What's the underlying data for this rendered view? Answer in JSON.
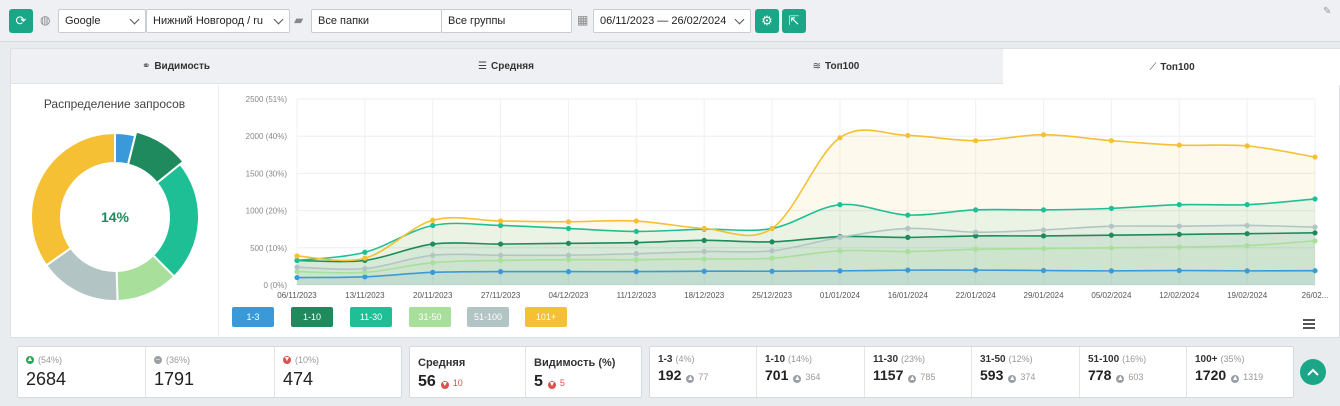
{
  "toolbar": {
    "search_engine": "Google",
    "region": "Нижний Новгород / ru",
    "folders": "Все папки",
    "groups": "Все группы",
    "date_range": "06/11/2023 — 26/02/2024"
  },
  "tabs": [
    {
      "label": "Видимость",
      "icon": "glasses-icon"
    },
    {
      "label": "Средняя",
      "icon": "lines-icon"
    },
    {
      "label": "Топ100",
      "icon": "layers-icon"
    },
    {
      "label": "Топ100",
      "icon": "chart-line-icon"
    }
  ],
  "donut": {
    "title": "Распределение запросов",
    "center_label": "14%"
  },
  "chart_data": {
    "type": "area",
    "categories": [
      "06/11/2023",
      "13/11/2023",
      "20/11/2023",
      "27/11/2023",
      "04/12/2023",
      "11/12/2023",
      "18/12/2023",
      "25/12/2023",
      "01/01/2024",
      "16/01/2024",
      "22/01/2024",
      "29/01/2024",
      "05/02/2024",
      "12/02/2024",
      "19/02/2024",
      "26/02..."
    ],
    "y_ticks": [
      "0 (0%)",
      "500 (10%)",
      "1000 (20%)",
      "1500 (30%)",
      "2000 (40%)",
      "2500 (51%)"
    ],
    "ylim": [
      0,
      2500
    ],
    "series": [
      {
        "name": "1-3",
        "color": "#3a9ad9",
        "values": [
          100,
          110,
          170,
          180,
          180,
          180,
          185,
          185,
          190,
          200,
          200,
          195,
          190,
          195,
          190,
          192
        ]
      },
      {
        "name": "1-10",
        "color": "#1e8a5e",
        "values": [
          330,
          330,
          550,
          550,
          560,
          570,
          600,
          580,
          650,
          640,
          660,
          660,
          670,
          680,
          690,
          701
        ]
      },
      {
        "name": "11-30",
        "color": "#1fbf95",
        "values": [
          330,
          440,
          800,
          800,
          760,
          720,
          750,
          760,
          1080,
          940,
          1010,
          1010,
          1030,
          1080,
          1080,
          1157
        ]
      },
      {
        "name": "31-50",
        "color": "#a8df9a",
        "values": [
          180,
          170,
          300,
          330,
          340,
          340,
          350,
          360,
          460,
          450,
          480,
          490,
          500,
          510,
          530,
          593
        ]
      },
      {
        "name": "51-100",
        "color": "#b3c4c4",
        "values": [
          240,
          220,
          400,
          400,
          400,
          420,
          450,
          460,
          640,
          760,
          710,
          740,
          790,
          790,
          800,
          778
        ]
      },
      {
        "name": "101+",
        "color": "#f5c033",
        "values": [
          390,
          360,
          870,
          860,
          850,
          860,
          760,
          760,
          1980,
          2010,
          1940,
          2020,
          1940,
          1880,
          1870,
          1720
        ]
      }
    ]
  },
  "donut_data": {
    "segments": [
      {
        "name": "1-3",
        "color": "#3a9ad9",
        "value": 192
      },
      {
        "name": "1-10",
        "color": "#1e8a5e",
        "value": 509
      },
      {
        "name": "11-30",
        "color": "#1fbf95",
        "value": 1157
      },
      {
        "name": "31-50",
        "color": "#a8df9a",
        "value": 593
      },
      {
        "name": "51-100",
        "color": "#b3c4c4",
        "value": 778
      },
      {
        "name": "101+",
        "color": "#f5c033",
        "value": 1720
      }
    ]
  },
  "stats": {
    "up": {
      "pct": "(54%)",
      "value": "2684"
    },
    "same": {
      "pct": "(36%)",
      "value": "1791"
    },
    "down": {
      "pct": "(10%)",
      "value": "474"
    }
  },
  "avg": {
    "label": "Средняя",
    "value": "56",
    "delta": "10"
  },
  "visibility": {
    "label": "Видимость (%)",
    "value": "5",
    "delta": "5"
  },
  "dist": [
    {
      "label": "1-3",
      "pct": "(4%)",
      "value": "192",
      "delta": "77"
    },
    {
      "label": "1-10",
      "pct": "(14%)",
      "value": "701",
      "delta": "364"
    },
    {
      "label": "11-30",
      "pct": "(23%)",
      "value": "1157",
      "delta": "785"
    },
    {
      "label": "31-50",
      "pct": "(12%)",
      "value": "593",
      "delta": "374"
    },
    {
      "label": "51-100",
      "pct": "(16%)",
      "value": "778",
      "delta": "603"
    },
    {
      "label": "100+",
      "pct": "(35%)",
      "value": "1720",
      "delta": "1319"
    }
  ]
}
